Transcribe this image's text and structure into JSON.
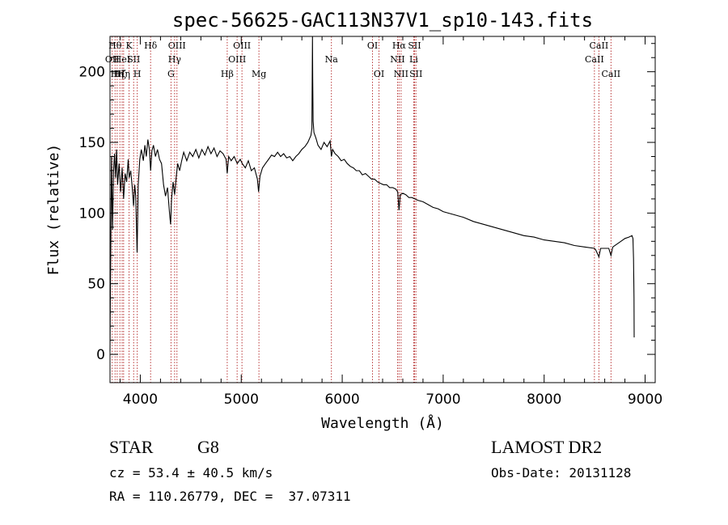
{
  "chart_data": {
    "type": "line",
    "title": "spec-56625-GAC113N37V1_sp10-143.fits",
    "xlabel": "Wavelength (Å)",
    "ylabel": "Flux (relative)",
    "xlim": [
      3700,
      9100
    ],
    "ylim": [
      -20,
      225
    ],
    "xticks": [
      4000,
      5000,
      6000,
      7000,
      8000,
      9000
    ],
    "yticks": [
      0,
      50,
      100,
      150,
      200
    ],
    "x_tick_labels": [
      "4000",
      "5000",
      "6000",
      "7000",
      "8000",
      "9000"
    ],
    "y_tick_labels": [
      "0",
      "50",
      "100",
      "150",
      "200"
    ],
    "series": [
      {
        "points": [
          [
            3700,
            2
          ],
          [
            3705,
            55
          ],
          [
            3715,
            140
          ],
          [
            3725,
            88
          ],
          [
            3735,
            130
          ],
          [
            3745,
            142
          ],
          [
            3755,
            125
          ],
          [
            3765,
            145
          ],
          [
            3775,
            120
          ],
          [
            3790,
            135
          ],
          [
            3805,
            115
          ],
          [
            3820,
            132
          ],
          [
            3835,
            110
          ],
          [
            3850,
            128
          ],
          [
            3865,
            122
          ],
          [
            3880,
            138
          ],
          [
            3890,
            125
          ],
          [
            3905,
            130
          ],
          [
            3920,
            118
          ],
          [
            3933,
            105
          ],
          [
            3945,
            120
          ],
          [
            3955,
            112
          ],
          [
            3968,
            72
          ],
          [
            3980,
            120
          ],
          [
            3995,
            138
          ],
          [
            4010,
            145
          ],
          [
            4030,
            137
          ],
          [
            4045,
            148
          ],
          [
            4060,
            140
          ],
          [
            4075,
            152
          ],
          [
            4090,
            145
          ],
          [
            4102,
            130
          ],
          [
            4115,
            144
          ],
          [
            4130,
            148
          ],
          [
            4150,
            140
          ],
          [
            4170,
            145
          ],
          [
            4190,
            138
          ],
          [
            4210,
            135
          ],
          [
            4230,
            120
          ],
          [
            4250,
            112
          ],
          [
            4270,
            118
          ],
          [
            4290,
            100
          ],
          [
            4300,
            92
          ],
          [
            4310,
            110
          ],
          [
            4325,
            122
          ],
          [
            4340,
            113
          ],
          [
            4355,
            125
          ],
          [
            4370,
            135
          ],
          [
            4390,
            130
          ],
          [
            4410,
            137
          ],
          [
            4430,
            143
          ],
          [
            4460,
            137
          ],
          [
            4490,
            143
          ],
          [
            4520,
            140
          ],
          [
            4550,
            145
          ],
          [
            4580,
            139
          ],
          [
            4610,
            145
          ],
          [
            4640,
            141
          ],
          [
            4670,
            147
          ],
          [
            4700,
            142
          ],
          [
            4730,
            146
          ],
          [
            4760,
            140
          ],
          [
            4790,
            144
          ],
          [
            4820,
            142
          ],
          [
            4850,
            138
          ],
          [
            4861,
            128
          ],
          [
            4875,
            140
          ],
          [
            4900,
            137
          ],
          [
            4930,
            140
          ],
          [
            4960,
            135
          ],
          [
            4990,
            138
          ],
          [
            5010,
            135
          ],
          [
            5040,
            132
          ],
          [
            5070,
            137
          ],
          [
            5100,
            130
          ],
          [
            5130,
            132
          ],
          [
            5160,
            124
          ],
          [
            5172,
            115
          ],
          [
            5185,
            126
          ],
          [
            5210,
            132
          ],
          [
            5240,
            135
          ],
          [
            5270,
            138
          ],
          [
            5300,
            141
          ],
          [
            5330,
            140
          ],
          [
            5360,
            143
          ],
          [
            5390,
            140
          ],
          [
            5420,
            142
          ],
          [
            5450,
            139
          ],
          [
            5480,
            140
          ],
          [
            5510,
            137
          ],
          [
            5540,
            140
          ],
          [
            5570,
            142
          ],
          [
            5600,
            145
          ],
          [
            5630,
            147
          ],
          [
            5660,
            150
          ],
          [
            5690,
            155
          ],
          [
            5700,
            160
          ],
          [
            5705,
            225
          ],
          [
            5708,
            195
          ],
          [
            5712,
            165
          ],
          [
            5720,
            157
          ],
          [
            5740,
            153
          ],
          [
            5760,
            148
          ],
          [
            5790,
            145
          ],
          [
            5820,
            150
          ],
          [
            5850,
            147
          ],
          [
            5880,
            151
          ],
          [
            5893,
            140
          ],
          [
            5905,
            145
          ],
          [
            5930,
            142
          ],
          [
            5960,
            140
          ],
          [
            5990,
            137
          ],
          [
            6020,
            138
          ],
          [
            6050,
            135
          ],
          [
            6080,
            133
          ],
          [
            6110,
            132
          ],
          [
            6140,
            130
          ],
          [
            6170,
            130
          ],
          [
            6200,
            127
          ],
          [
            6230,
            128
          ],
          [
            6260,
            126
          ],
          [
            6290,
            124
          ],
          [
            6320,
            124
          ],
          [
            6350,
            122
          ],
          [
            6380,
            121
          ],
          [
            6410,
            120
          ],
          [
            6440,
            120
          ],
          [
            6470,
            118
          ],
          [
            6500,
            118
          ],
          [
            6530,
            117
          ],
          [
            6550,
            115
          ],
          [
            6563,
            102
          ],
          [
            6575,
            113
          ],
          [
            6600,
            114
          ],
          [
            6630,
            113
          ],
          [
            6660,
            111
          ],
          [
            6690,
            111
          ],
          [
            6720,
            110
          ],
          [
            6750,
            109
          ],
          [
            6800,
            108
          ],
          [
            6850,
            106
          ],
          [
            6900,
            104
          ],
          [
            6950,
            103
          ],
          [
            7000,
            101
          ],
          [
            7050,
            100
          ],
          [
            7100,
            99
          ],
          [
            7150,
            98
          ],
          [
            7200,
            97
          ],
          [
            7300,
            94
          ],
          [
            7400,
            92
          ],
          [
            7500,
            90
          ],
          [
            7600,
            88
          ],
          [
            7700,
            86
          ],
          [
            7800,
            84
          ],
          [
            7900,
            83
          ],
          [
            8000,
            81
          ],
          [
            8100,
            80
          ],
          [
            8200,
            79
          ],
          [
            8300,
            77
          ],
          [
            8400,
            76
          ],
          [
            8498,
            75
          ],
          [
            8510,
            74
          ],
          [
            8542,
            69
          ],
          [
            8560,
            75
          ],
          [
            8600,
            75
          ],
          [
            8640,
            75
          ],
          [
            8662,
            70
          ],
          [
            8680,
            76
          ],
          [
            8720,
            78
          ],
          [
            8760,
            80
          ],
          [
            8800,
            82
          ],
          [
            8840,
            83
          ],
          [
            8870,
            84
          ],
          [
            8880,
            82
          ],
          [
            8885,
            68
          ],
          [
            8890,
            40
          ],
          [
            8892,
            12
          ]
        ]
      }
    ],
    "lines": [
      {
        "wl": 3722,
        "label": "OII",
        "row": 1
      },
      {
        "wl": 3750,
        "label": "Hθ",
        "row": 0
      },
      {
        "wl": 3771,
        "label": "Hη",
        "row": 2
      },
      {
        "wl": 3798,
        "label": "Hζ",
        "row": 2
      },
      {
        "wl": 3820,
        "label": "HeI",
        "row": 1
      },
      {
        "wl": 3835,
        "label": "Hη",
        "row": 2
      },
      {
        "wl": 3889,
        "label": "K",
        "row": 0
      },
      {
        "wl": 3934,
        "label": "SII",
        "row": 1
      },
      {
        "wl": 3970,
        "label": "H",
        "row": 2
      },
      {
        "wl": 4102,
        "label": "Hδ",
        "row": 0
      },
      {
        "wl": 4304,
        "label": "G",
        "row": 2
      },
      {
        "wl": 4340,
        "label": "Hγ",
        "row": 1
      },
      {
        "wl": 4363,
        "label": "OIII",
        "row": 0
      },
      {
        "wl": 4861,
        "label": "Hβ",
        "row": 2
      },
      {
        "wl": 4959,
        "label": "OIII",
        "row": 1
      },
      {
        "wl": 5007,
        "label": "OIII",
        "row": 0
      },
      {
        "wl": 5175,
        "label": "Mg",
        "row": 2
      },
      {
        "wl": 5893,
        "label": "Na",
        "row": 1
      },
      {
        "wl": 6300,
        "label": "OI",
        "row": 0
      },
      {
        "wl": 6364,
        "label": "OI",
        "row": 2
      },
      {
        "wl": 6548,
        "label": "NII",
        "row": 1
      },
      {
        "wl": 6563,
        "label": "Hα",
        "row": 0
      },
      {
        "wl": 6583,
        "label": "NII",
        "row": 2
      },
      {
        "wl": 6708,
        "label": "Li",
        "row": 1
      },
      {
        "wl": 6716,
        "label": "SII",
        "row": 0
      },
      {
        "wl": 6730,
        "label": "SII",
        "row": 2
      },
      {
        "wl": 8498,
        "label": "CaII",
        "row": 1
      },
      {
        "wl": 8542,
        "label": "CaII",
        "row": 0
      },
      {
        "wl": 8662,
        "label": "CaII",
        "row": 2
      }
    ],
    "grid": false
  },
  "info": {
    "class_label": "STAR",
    "subclass": "G8",
    "survey": "LAMOST DR2",
    "cz": "cz = 53.4 ± 40.5 km/s",
    "obs_date": "Obs-Date: 20131128",
    "coords": "RA = 110.26779, DEC =  37.07311"
  },
  "colors": {
    "spectrum": "#000000",
    "line_markers": "#b22222"
  }
}
